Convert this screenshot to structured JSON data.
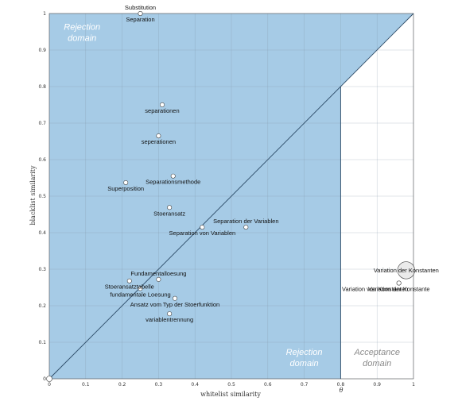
{
  "chart_data": {
    "type": "scatter",
    "xlabel": "whitelist similarity",
    "ylabel": "blacklist similarity",
    "xlim": [
      0,
      1
    ],
    "ylim": [
      0,
      1
    ],
    "theta": 0.8,
    "theta_label": "θ",
    "grid": true,
    "colors": {
      "rejection_fill": "#a6cbe6",
      "line": "#2b4a66",
      "grid": "#7f93a6"
    },
    "x_ticks": [
      "0",
      "0.1",
      "0.2",
      "0.3",
      "0.4",
      "0.5",
      "0.6",
      "0.7",
      "0.8",
      "0.9",
      "1"
    ],
    "y_ticks": [
      "0",
      "0.1",
      "0.2",
      "0.3",
      "0.4",
      "0.5",
      "0.6",
      "0.7",
      "0.8",
      "0.9",
      "1"
    ],
    "domain_labels": {
      "top_left": [
        "Rejection",
        "domain"
      ],
      "bottom_middle": [
        "Rejection",
        "domain"
      ],
      "bottom_right": [
        "Acceptance",
        "domain"
      ]
    },
    "points": [
      {
        "label": "Substitution",
        "x": 0.25,
        "y": 1.0,
        "size": 1,
        "label_pos": "above"
      },
      {
        "label": "Separation",
        "x": 0.25,
        "y": 1.0,
        "size": 1,
        "label_pos": "below"
      },
      {
        "label": "separationen",
        "x": 0.31,
        "y": 0.75,
        "size": 1,
        "label_pos": "below"
      },
      {
        "label": "seperationen",
        "x": 0.3,
        "y": 0.665,
        "size": 1,
        "label_pos": "below"
      },
      {
        "label": "Separationsmethode",
        "x": 0.34,
        "y": 0.555,
        "size": 1,
        "label_pos": "below"
      },
      {
        "label": "Superposition",
        "x": 0.21,
        "y": 0.537,
        "size": 1,
        "label_pos": "below"
      },
      {
        "label": "Stoeransatz",
        "x": 0.33,
        "y": 0.469,
        "size": 1,
        "label_pos": "below"
      },
      {
        "label": "Separation der Variablen",
        "x": 0.54,
        "y": 0.415,
        "size": 1,
        "label_pos": "above"
      },
      {
        "label": "Separation von Variablen",
        "x": 0.42,
        "y": 0.415,
        "size": 1,
        "label_pos": "below"
      },
      {
        "label": "Fundamentalloesung",
        "x": 0.3,
        "y": 0.272,
        "size": 1,
        "label_pos": "above"
      },
      {
        "label": "Stoeransatztabelle",
        "x": 0.22,
        "y": 0.268,
        "size": 1,
        "label_pos": "below"
      },
      {
        "label": "fundamentale Loesung",
        "x": 0.25,
        "y": 0.247,
        "size": 1,
        "label_pos": "below"
      },
      {
        "label": "Ansatz vom Typ der Stoerfunktion",
        "x": 0.345,
        "y": 0.22,
        "size": 1,
        "label_pos": "below"
      },
      {
        "label": "variablentrennung",
        "x": 0.33,
        "y": 0.178,
        "size": 1,
        "label_pos": "below"
      },
      {
        "label": "Variation der Konstanten",
        "x": 0.98,
        "y": 0.297,
        "size": 4,
        "label_pos": "on"
      },
      {
        "label": "Variation der Konstante",
        "x": 0.96,
        "y": 0.262,
        "size": 1,
        "label_pos": "below"
      },
      {
        "label": "Variation von Konstanten",
        "x": 0.96,
        "y": 0.262,
        "size": 1,
        "label_pos": "below-left"
      },
      {
        "label": "",
        "x": 0.0,
        "y": 0.0,
        "size": 1.3,
        "label_pos": "none"
      }
    ]
  }
}
